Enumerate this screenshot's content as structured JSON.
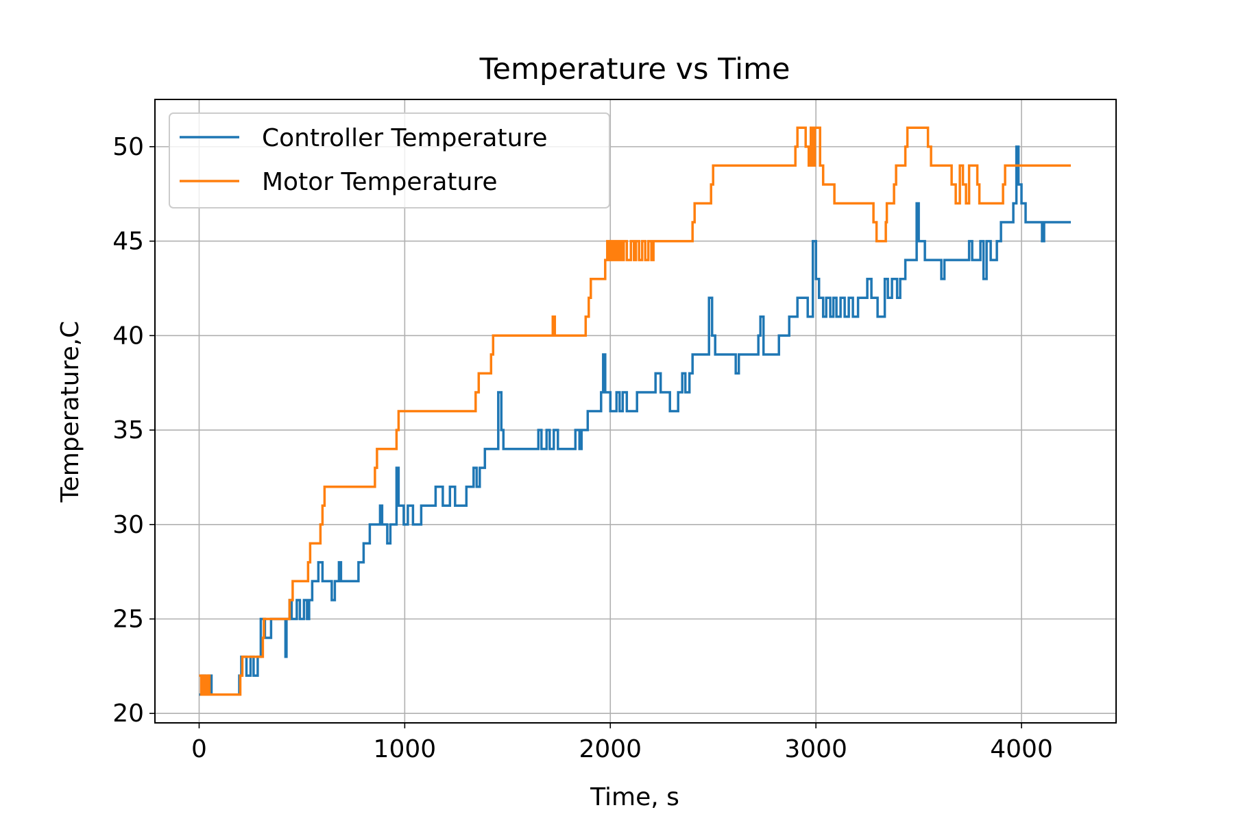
{
  "chart_data": {
    "type": "line",
    "title": "Temperature vs Time",
    "xlabel": "Time, s",
    "ylabel": "Temperature,C",
    "xlim": [
      -215,
      4460
    ],
    "ylim": [
      19.5,
      52.5
    ],
    "xticks": [
      0,
      1000,
      2000,
      3000,
      4000
    ],
    "yticks": [
      20,
      25,
      30,
      35,
      40,
      45,
      50
    ],
    "grid": true,
    "legend_position": "upper-left",
    "series": [
      {
        "name": "Controller Temperature",
        "color": "#1f77b4",
        "step": true,
        "points": [
          [
            0,
            21
          ],
          [
            15,
            22
          ],
          [
            30,
            21
          ],
          [
            45,
            22
          ],
          [
            60,
            21
          ],
          [
            195,
            22
          ],
          [
            205,
            23
          ],
          [
            230,
            22
          ],
          [
            250,
            23
          ],
          [
            265,
            22
          ],
          [
            285,
            23
          ],
          [
            300,
            25
          ],
          [
            320,
            24
          ],
          [
            350,
            25
          ],
          [
            395,
            25
          ],
          [
            420,
            23
          ],
          [
            425,
            25
          ],
          [
            440,
            26
          ],
          [
            450,
            25
          ],
          [
            475,
            26
          ],
          [
            490,
            25
          ],
          [
            510,
            26
          ],
          [
            525,
            25
          ],
          [
            535,
            26
          ],
          [
            550,
            27
          ],
          [
            580,
            28
          ],
          [
            600,
            27
          ],
          [
            645,
            26
          ],
          [
            660,
            27
          ],
          [
            680,
            28
          ],
          [
            690,
            27
          ],
          [
            775,
            28
          ],
          [
            800,
            29
          ],
          [
            830,
            30
          ],
          [
            880,
            31
          ],
          [
            890,
            30
          ],
          [
            915,
            29
          ],
          [
            930,
            30
          ],
          [
            960,
            33
          ],
          [
            970,
            31
          ],
          [
            995,
            30
          ],
          [
            1015,
            31
          ],
          [
            1040,
            30
          ],
          [
            1080,
            31
          ],
          [
            1150,
            32
          ],
          [
            1185,
            31
          ],
          [
            1220,
            32
          ],
          [
            1245,
            31
          ],
          [
            1300,
            32
          ],
          [
            1335,
            33
          ],
          [
            1350,
            32
          ],
          [
            1365,
            33
          ],
          [
            1390,
            34
          ],
          [
            1455,
            37
          ],
          [
            1470,
            35
          ],
          [
            1480,
            34
          ],
          [
            1650,
            35
          ],
          [
            1665,
            34
          ],
          [
            1690,
            35
          ],
          [
            1705,
            34
          ],
          [
            1725,
            35
          ],
          [
            1745,
            34
          ],
          [
            1830,
            35
          ],
          [
            1850,
            34
          ],
          [
            1860,
            35
          ],
          [
            1890,
            36
          ],
          [
            1955,
            37
          ],
          [
            1965,
            39
          ],
          [
            1975,
            37
          ],
          [
            2000,
            36
          ],
          [
            2030,
            37
          ],
          [
            2045,
            36
          ],
          [
            2060,
            37
          ],
          [
            2080,
            36
          ],
          [
            2130,
            37
          ],
          [
            2220,
            38
          ],
          [
            2245,
            37
          ],
          [
            2290,
            36
          ],
          [
            2330,
            37
          ],
          [
            2350,
            38
          ],
          [
            2365,
            37
          ],
          [
            2385,
            38
          ],
          [
            2400,
            39
          ],
          [
            2480,
            42
          ],
          [
            2495,
            40
          ],
          [
            2510,
            39
          ],
          [
            2610,
            38
          ],
          [
            2625,
            39
          ],
          [
            2720,
            40
          ],
          [
            2730,
            41
          ],
          [
            2745,
            39
          ],
          [
            2820,
            40
          ],
          [
            2870,
            41
          ],
          [
            2910,
            42
          ],
          [
            2960,
            41
          ],
          [
            2985,
            45
          ],
          [
            3000,
            43
          ],
          [
            3015,
            42
          ],
          [
            3035,
            41
          ],
          [
            3050,
            42
          ],
          [
            3070,
            41
          ],
          [
            3085,
            42
          ],
          [
            3100,
            41
          ],
          [
            3120,
            42
          ],
          [
            3140,
            41
          ],
          [
            3160,
            42
          ],
          [
            3180,
            41
          ],
          [
            3205,
            42
          ],
          [
            3250,
            43
          ],
          [
            3270,
            42
          ],
          [
            3300,
            41
          ],
          [
            3335,
            43
          ],
          [
            3350,
            42
          ],
          [
            3370,
            43
          ],
          [
            3395,
            42
          ],
          [
            3410,
            43
          ],
          [
            3435,
            44
          ],
          [
            3490,
            47
          ],
          [
            3500,
            45
          ],
          [
            3530,
            44
          ],
          [
            3610,
            43
          ],
          [
            3625,
            44
          ],
          [
            3745,
            45
          ],
          [
            3760,
            44
          ],
          [
            3800,
            45
          ],
          [
            3815,
            43
          ],
          [
            3830,
            45
          ],
          [
            3850,
            44
          ],
          [
            3880,
            45
          ],
          [
            3900,
            46
          ],
          [
            3960,
            47
          ],
          [
            3975,
            50
          ],
          [
            3985,
            48
          ],
          [
            4000,
            47
          ],
          [
            4020,
            46
          ],
          [
            4100,
            45
          ],
          [
            4110,
            46
          ],
          [
            4240,
            46
          ]
        ]
      },
      {
        "name": "Motor Temperature",
        "color": "#ff7f0e",
        "step": true,
        "points": [
          [
            0,
            22
          ],
          [
            10,
            21
          ],
          [
            20,
            22
          ],
          [
            30,
            21
          ],
          [
            40,
            22
          ],
          [
            50,
            21
          ],
          [
            200,
            22
          ],
          [
            210,
            23
          ],
          [
            310,
            24
          ],
          [
            315,
            25
          ],
          [
            440,
            26
          ],
          [
            455,
            27
          ],
          [
            530,
            28
          ],
          [
            540,
            29
          ],
          [
            590,
            30
          ],
          [
            600,
            31
          ],
          [
            610,
            32
          ],
          [
            630,
            32
          ],
          [
            855,
            33
          ],
          [
            865,
            34
          ],
          [
            960,
            35
          ],
          [
            970,
            36
          ],
          [
            1345,
            37
          ],
          [
            1360,
            38
          ],
          [
            1420,
            39
          ],
          [
            1430,
            40
          ],
          [
            1720,
            41
          ],
          [
            1730,
            40
          ],
          [
            1880,
            41
          ],
          [
            1895,
            42
          ],
          [
            1905,
            43
          ],
          [
            1975,
            44
          ],
          [
            1985,
            45
          ],
          [
            1995,
            44
          ],
          [
            2005,
            45
          ],
          [
            2015,
            44
          ],
          [
            2025,
            45
          ],
          [
            2035,
            44
          ],
          [
            2045,
            45
          ],
          [
            2055,
            44
          ],
          [
            2065,
            45
          ],
          [
            2080,
            44
          ],
          [
            2100,
            45
          ],
          [
            2115,
            44
          ],
          [
            2125,
            45
          ],
          [
            2140,
            44
          ],
          [
            2155,
            45
          ],
          [
            2170,
            44
          ],
          [
            2185,
            45
          ],
          [
            2200,
            44
          ],
          [
            2210,
            45
          ],
          [
            2400,
            46
          ],
          [
            2410,
            47
          ],
          [
            2490,
            48
          ],
          [
            2500,
            49
          ],
          [
            2900,
            50
          ],
          [
            2910,
            51
          ],
          [
            2950,
            50
          ],
          [
            2965,
            49
          ],
          [
            2975,
            51
          ],
          [
            2985,
            49
          ],
          [
            2995,
            51
          ],
          [
            3020,
            49
          ],
          [
            3035,
            48
          ],
          [
            3050,
            48
          ],
          [
            3090,
            47
          ],
          [
            3280,
            46
          ],
          [
            3295,
            45
          ],
          [
            3340,
            46
          ],
          [
            3345,
            47
          ],
          [
            3380,
            48
          ],
          [
            3390,
            49
          ],
          [
            3435,
            50
          ],
          [
            3445,
            51
          ],
          [
            3545,
            50
          ],
          [
            3560,
            49
          ],
          [
            3660,
            48
          ],
          [
            3680,
            47
          ],
          [
            3700,
            49
          ],
          [
            3715,
            48
          ],
          [
            3730,
            47
          ],
          [
            3745,
            49
          ],
          [
            3785,
            48
          ],
          [
            3795,
            47
          ],
          [
            3910,
            48
          ],
          [
            3920,
            49
          ],
          [
            4240,
            49
          ]
        ]
      }
    ]
  }
}
